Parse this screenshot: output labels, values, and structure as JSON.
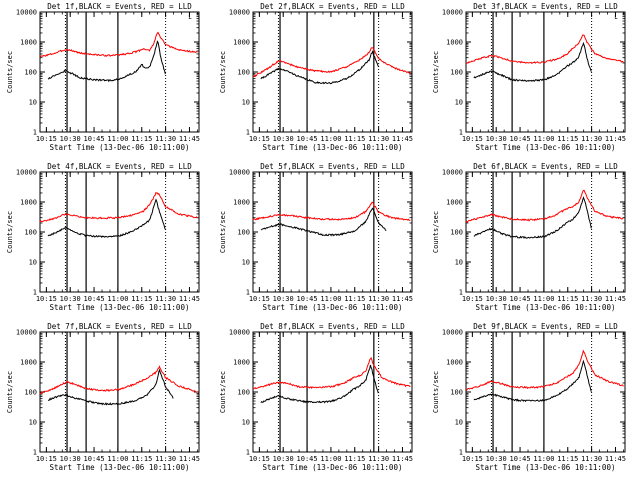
{
  "figure": {
    "background": "#ffffff",
    "colors": {
      "events": "#000000",
      "lld": "#ff0000",
      "axes": "#000000"
    }
  },
  "chart_data": [
    {
      "type": "line",
      "title": "Det 1f,BLACK = Events, RED = LLD",
      "xlabel": "Start Time (13-Dec-06 10:11:00)",
      "ylabel": "Counts/sec",
      "x_ticks": [
        "10:15",
        "10:30",
        "10:45",
        "11:00",
        "11:15",
        "11:30",
        "11:45"
      ],
      "xlim": [
        "10:11",
        "11:51"
      ],
      "y_ticks": [
        "1",
        "10",
        "100",
        "1000",
        "10000"
      ],
      "ylim": [
        1,
        10000
      ],
      "yscale": "log",
      "grid": false,
      "solid_vlines": [
        "10:28",
        "10:40",
        "11:00"
      ],
      "dotted_vlines": [
        "10:27",
        "11:30"
      ],
      "corner_mark": "└",
      "series": [
        {
          "color": "#ff0000",
          "x": [
            "10:11",
            "10:20",
            "10:27",
            "10:31",
            "10:36",
            "10:45",
            "10:55",
            "11:05",
            "11:12",
            "11:16",
            "11:20",
            "11:22",
            "11:25",
            "11:27",
            "11:30",
            "11:38",
            "11:50"
          ],
          "y": [
            320,
            420,
            560,
            520,
            430,
            380,
            350,
            400,
            480,
            600,
            520,
            780,
            2100,
            1400,
            800,
            550,
            450
          ]
        },
        {
          "color": "#000000",
          "x": [
            "10:16",
            "10:22",
            "10:27",
            "10:31",
            "10:36",
            "10:45",
            "10:55",
            "11:02",
            "11:08",
            "11:12",
            "11:15",
            "11:17",
            "11:20",
            "11:22",
            "11:25",
            "11:27",
            "11:30"
          ],
          "y": [
            60,
            85,
            110,
            90,
            65,
            55,
            52,
            60,
            85,
            110,
            180,
            130,
            150,
            280,
            1100,
            300,
            80
          ]
        }
      ]
    },
    {
      "type": "line",
      "title": "Det 2f,BLACK = Events, RED = LLD",
      "xlabel": "Start Time (13-Dec-06 10:11:00)",
      "ylabel": "Counts/sec",
      "x_ticks": [
        "10:15",
        "10:30",
        "10:45",
        "11:00",
        "11:15",
        "11:30",
        "11:45"
      ],
      "xlim": [
        "10:11",
        "11:51"
      ],
      "y_ticks": [
        "1",
        "10",
        "100",
        "1000",
        "10000"
      ],
      "ylim": [
        1,
        10000
      ],
      "yscale": "log",
      "grid": false,
      "solid_vlines": [
        "10:28",
        "10:45",
        "11:27"
      ],
      "dotted_vlines": [
        "10:27",
        "11:30"
      ],
      "corner_mark": "└",
      "series": [
        {
          "color": "#ff0000",
          "x": [
            "10:11",
            "10:18",
            "10:24",
            "10:28",
            "10:33",
            "10:40",
            "10:50",
            "11:00",
            "11:10",
            "11:18",
            "11:24",
            "11:26",
            "11:30",
            "11:38",
            "11:50"
          ],
          "y": [
            70,
            110,
            180,
            240,
            190,
            140,
            110,
            100,
            150,
            250,
            450,
            700,
            280,
            150,
            90
          ]
        },
        {
          "color": "#000000",
          "x": [
            "10:16",
            "10:22",
            "10:27",
            "10:32",
            "10:40",
            "10:50",
            "11:00",
            "11:10",
            "11:18",
            "11:24",
            "11:26",
            "11:30"
          ],
          "y": [
            60,
            90,
            130,
            110,
            70,
            45,
            42,
            60,
            120,
            250,
            480,
            150
          ]
        }
      ]
    },
    {
      "type": "line",
      "title": "Det 3f,BLACK = Events, RED = LLD",
      "xlabel": "Start Time (13-Dec-06 10:11:00)",
      "ylabel": "Counts/sec",
      "x_ticks": [
        "10:15",
        "10:30",
        "10:45",
        "11:00",
        "11:15",
        "11:30",
        "11:45"
      ],
      "xlim": [
        "10:11",
        "11:51"
      ],
      "y_ticks": [
        "1",
        "10",
        "100",
        "1000",
        "10000"
      ],
      "ylim": [
        1,
        10000
      ],
      "yscale": "log",
      "grid": false,
      "solid_vlines": [
        "10:28",
        "10:40",
        "11:00"
      ],
      "dotted_vlines": [
        "10:27",
        "11:30"
      ],
      "corner_mark": "└",
      "series": [
        {
          "color": "#ff0000",
          "x": [
            "10:11",
            "10:20",
            "10:27",
            "10:33",
            "10:40",
            "10:50",
            "11:00",
            "11:08",
            "11:14",
            "11:18",
            "11:22",
            "11:25",
            "11:27",
            "11:32",
            "11:40",
            "11:50"
          ],
          "y": [
            200,
            280,
            350,
            300,
            230,
            200,
            210,
            270,
            380,
            600,
            900,
            1900,
            1000,
            400,
            280,
            220
          ]
        },
        {
          "color": "#000000",
          "x": [
            "10:16",
            "10:22",
            "10:27",
            "10:33",
            "10:40",
            "10:50",
            "11:00",
            "11:08",
            "11:14",
            "11:18",
            "11:22",
            "11:25",
            "11:27",
            "11:30"
          ],
          "y": [
            65,
            85,
            110,
            80,
            55,
            50,
            55,
            80,
            150,
            200,
            320,
            1000,
            300,
            90
          ]
        }
      ]
    },
    {
      "type": "line",
      "title": "Det 4f,BLACK = Events, RED = LLD",
      "xlabel": "Start Time (13-Dec-06 10:11:00)",
      "ylabel": "Counts/sec",
      "x_ticks": [
        "10:15",
        "10:30",
        "10:45",
        "11:00",
        "11:15",
        "11:30",
        "11:45"
      ],
      "xlim": [
        "10:11",
        "11:51"
      ],
      "y_ticks": [
        "1",
        "10",
        "100",
        "1000",
        "10000"
      ],
      "ylim": [
        1,
        10000
      ],
      "yscale": "log",
      "grid": false,
      "solid_vlines": [
        "10:28",
        "10:40",
        "11:00"
      ],
      "dotted_vlines": [
        "10:27",
        "11:30"
      ],
      "corner_mark": "└",
      "series": [
        {
          "color": "#ff0000",
          "x": [
            "10:11",
            "10:20",
            "10:27",
            "10:33",
            "10:40",
            "10:50",
            "11:00",
            "11:10",
            "11:16",
            "11:20",
            "11:24",
            "11:26",
            "11:30",
            "11:38",
            "11:50"
          ],
          "y": [
            220,
            280,
            400,
            350,
            300,
            290,
            300,
            380,
            500,
            800,
            2000,
            1800,
            700,
            400,
            300
          ]
        },
        {
          "color": "#000000",
          "x": [
            "10:16",
            "10:22",
            "10:27",
            "10:32",
            "10:40",
            "10:50",
            "11:00",
            "11:08",
            "11:14",
            "11:20",
            "11:24",
            "11:26",
            "11:30"
          ],
          "y": [
            75,
            100,
            140,
            100,
            75,
            70,
            72,
            100,
            150,
            250,
            1200,
            500,
            110
          ]
        }
      ]
    },
    {
      "type": "line",
      "title": "Det 5f,BLACK = Events, RED = LLD",
      "xlabel": "Start Time (13-Dec-06 10:11:00)",
      "ylabel": "Counts/sec",
      "x_ticks": [
        "10:15",
        "10:30",
        "10:45",
        "11:00",
        "11:15",
        "11:30",
        "11:45"
      ],
      "xlim": [
        "10:11",
        "11:51"
      ],
      "y_ticks": [
        "1",
        "10",
        "100",
        "1000",
        "10000"
      ],
      "ylim": [
        1,
        10000
      ],
      "yscale": "log",
      "grid": false,
      "solid_vlines": [
        "10:28",
        "10:45",
        "11:27"
      ],
      "dotted_vlines": [
        "10:27",
        "11:30"
      ],
      "corner_mark": "└",
      "series": [
        {
          "color": "#ff0000",
          "x": [
            "10:11",
            "10:20",
            "10:28",
            "10:35",
            "10:45",
            "10:55",
            "11:05",
            "11:15",
            "11:22",
            "11:26",
            "11:30",
            "11:38",
            "11:50"
          ],
          "y": [
            260,
            320,
            380,
            350,
            300,
            270,
            260,
            300,
            480,
            1000,
            450,
            300,
            250
          ]
        },
        {
          "color": "#000000",
          "x": [
            "10:16",
            "10:22",
            "10:28",
            "10:35",
            "10:45",
            "10:55",
            "11:05",
            "11:15",
            "11:22",
            "11:26",
            "11:30",
            "11:35"
          ],
          "y": [
            120,
            150,
            180,
            150,
            110,
            80,
            80,
            110,
            220,
            650,
            200,
            110
          ]
        }
      ]
    },
    {
      "type": "line",
      "title": "Det 6f,BLACK = Events, RED = LLD",
      "xlabel": "Start Time (13-Dec-06 10:11:00)",
      "ylabel": "Counts/sec",
      "x_ticks": [
        "10:15",
        "10:30",
        "10:45",
        "11:00",
        "11:15",
        "11:30",
        "11:45"
      ],
      "xlim": [
        "10:11",
        "11:51"
      ],
      "y_ticks": [
        "1",
        "10",
        "100",
        "1000",
        "10000"
      ],
      "ylim": [
        1,
        10000
      ],
      "yscale": "log",
      "grid": false,
      "solid_vlines": [
        "10:28",
        "10:40",
        "11:00"
      ],
      "dotted_vlines": [
        "10:27",
        "11:30"
      ],
      "corner_mark": "└",
      "series": [
        {
          "color": "#ff0000",
          "x": [
            "10:11",
            "10:20",
            "10:27",
            "10:33",
            "10:40",
            "10:50",
            "11:00",
            "11:08",
            "11:14",
            "11:18",
            "11:22",
            "11:25",
            "11:27",
            "11:32",
            "11:40",
            "11:50"
          ],
          "y": [
            220,
            300,
            380,
            320,
            270,
            250,
            270,
            380,
            600,
            700,
            1000,
            2600,
            1500,
            500,
            330,
            280
          ]
        },
        {
          "color": "#000000",
          "x": [
            "10:16",
            "10:22",
            "10:27",
            "10:33",
            "10:40",
            "10:50",
            "11:00",
            "11:08",
            "11:14",
            "11:18",
            "11:22",
            "11:25",
            "11:27",
            "11:30"
          ],
          "y": [
            75,
            100,
            130,
            90,
            70,
            65,
            70,
            110,
            200,
            260,
            450,
            1500,
            600,
            120
          ]
        }
      ]
    },
    {
      "type": "line",
      "title": "Det 7f,BLACK = Events, RED = LLD",
      "xlabel": "Start Time (13-Dec-06 10:11:00)",
      "ylabel": "Counts/sec",
      "x_ticks": [
        "10:15",
        "10:30",
        "10:45",
        "11:00",
        "11:15",
        "11:30",
        "11:45"
      ],
      "xlim": [
        "10:11",
        "11:51"
      ],
      "y_ticks": [
        "1",
        "10",
        "100",
        "1000",
        "10000"
      ],
      "ylim": [
        1,
        10000
      ],
      "yscale": "log",
      "grid": false,
      "solid_vlines": [
        "10:28",
        "10:40",
        "11:00"
      ],
      "dotted_vlines": [
        "10:27",
        "11:30"
      ],
      "corner_mark": "└",
      "series": [
        {
          "color": "#ff0000",
          "x": [
            "10:11",
            "10:18",
            "10:24",
            "10:28",
            "10:33",
            "10:40",
            "10:50",
            "11:00",
            "11:10",
            "11:18",
            "11:24",
            "11:26",
            "11:30",
            "11:38",
            "11:50"
          ],
          "y": [
            90,
            120,
            170,
            220,
            180,
            130,
            110,
            120,
            180,
            280,
            450,
            700,
            300,
            160,
            100
          ]
        },
        {
          "color": "#000000",
          "x": [
            "10:16",
            "10:22",
            "10:27",
            "10:32",
            "10:40",
            "10:50",
            "11:00",
            "11:10",
            "11:18",
            "11:24",
            "11:26",
            "11:30",
            "11:35"
          ],
          "y": [
            55,
            70,
            80,
            65,
            50,
            40,
            40,
            50,
            75,
            180,
            550,
            150,
            60
          ]
        }
      ]
    },
    {
      "type": "line",
      "title": "Det 8f,BLACK = Events, RED = LLD",
      "xlabel": "Start Time (13-Dec-06 10:11:00)",
      "ylabel": "Counts/sec",
      "x_ticks": [
        "10:15",
        "10:30",
        "10:45",
        "11:00",
        "11:15",
        "11:30",
        "11:45"
      ],
      "xlim": [
        "10:11",
        "11:51"
      ],
      "y_ticks": [
        "1",
        "10",
        "100",
        "1000",
        "10000"
      ],
      "ylim": [
        1,
        10000
      ],
      "yscale": "log",
      "grid": false,
      "solid_vlines": [
        "10:28",
        "10:45",
        "11:27"
      ],
      "dotted_vlines": [
        "10:27",
        "11:30"
      ],
      "corner_mark": "└",
      "series": [
        {
          "color": "#ff0000",
          "x": [
            "10:11",
            "10:20",
            "10:27",
            "10:33",
            "10:40",
            "10:50",
            "11:00",
            "11:08",
            "11:14",
            "11:18",
            "11:22",
            "11:25",
            "11:27",
            "11:32",
            "11:40",
            "11:50"
          ],
          "y": [
            130,
            170,
            210,
            190,
            150,
            140,
            150,
            190,
            300,
            350,
            500,
            1400,
            800,
            300,
            200,
            150
          ]
        },
        {
          "color": "#000000",
          "x": [
            "10:16",
            "10:22",
            "10:27",
            "10:33",
            "10:40",
            "10:50",
            "11:00",
            "11:08",
            "11:14",
            "11:18",
            "11:22",
            "11:25",
            "11:27",
            "11:30"
          ],
          "y": [
            45,
            60,
            75,
            60,
            50,
            45,
            48,
            70,
            120,
            160,
            250,
            800,
            300,
            80
          ]
        }
      ]
    },
    {
      "type": "line",
      "title": "Det 9f,BLACK = Events, RED = LLD",
      "xlabel": "Start Time (13-Dec-06 10:11:00)",
      "ylabel": "Counts/sec",
      "x_ticks": [
        "10:15",
        "10:30",
        "10:45",
        "11:00",
        "11:15",
        "11:30",
        "11:45"
      ],
      "xlim": [
        "10:11",
        "11:51"
      ],
      "y_ticks": [
        "1",
        "10",
        "100",
        "1000",
        "10000"
      ],
      "ylim": [
        1,
        10000
      ],
      "yscale": "log",
      "grid": false,
      "solid_vlines": [
        "10:28",
        "10:40",
        "11:00"
      ],
      "dotted_vlines": [
        "10:27",
        "11:30"
      ],
      "corner_mark": "└",
      "series": [
        {
          "color": "#ff0000",
          "x": [
            "10:11",
            "10:20",
            "10:27",
            "10:33",
            "10:40",
            "10:50",
            "11:00",
            "11:08",
            "11:14",
            "11:18",
            "11:22",
            "11:25",
            "11:27",
            "11:32",
            "11:40",
            "11:50"
          ],
          "y": [
            120,
            160,
            230,
            190,
            150,
            140,
            150,
            200,
            320,
            400,
            800,
            2400,
            1200,
            380,
            230,
            160
          ]
        },
        {
          "color": "#000000",
          "x": [
            "10:16",
            "10:22",
            "10:27",
            "10:33",
            "10:40",
            "10:50",
            "11:00",
            "11:08",
            "11:14",
            "11:18",
            "11:22",
            "11:25",
            "11:27",
            "11:30"
          ],
          "y": [
            55,
            70,
            85,
            70,
            55,
            50,
            52,
            75,
            120,
            180,
            300,
            1100,
            400,
            90
          ]
        }
      ]
    }
  ]
}
